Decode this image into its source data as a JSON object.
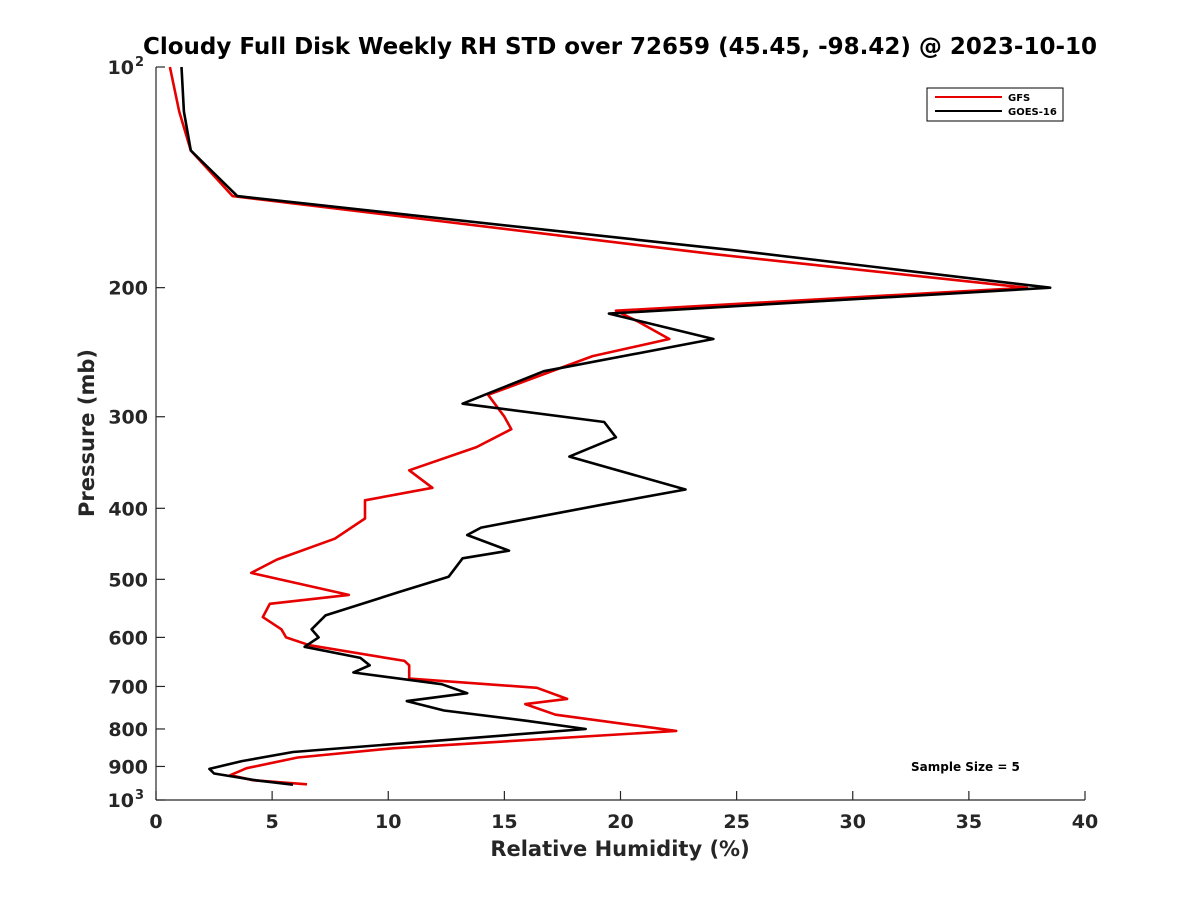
{
  "chart_data": {
    "type": "line",
    "title": "Cloudy Full Disk Weekly RH STD over 72659 (45.45, -98.42) @ 2023-10-10",
    "xlabel": "Relative Humidity (%)",
    "ylabel": "Pressure (mb)",
    "xlim": [
      0,
      40
    ],
    "ylim": [
      100,
      1000
    ],
    "y_scale": "log",
    "y_reversed": true,
    "grid": false,
    "legend_position": "top-right",
    "x_ticks": [
      0,
      5,
      10,
      15,
      20,
      25,
      30,
      35,
      40
    ],
    "y_ticks": [
      {
        "value": 100,
        "label": "10",
        "sup": "2"
      },
      {
        "value": 200,
        "label": "200"
      },
      {
        "value": 300,
        "label": "300"
      },
      {
        "value": 400,
        "label": "400"
      },
      {
        "value": 500,
        "label": "500"
      },
      {
        "value": 600,
        "label": "600"
      },
      {
        "value": 700,
        "label": "700"
      },
      {
        "value": 800,
        "label": "800"
      },
      {
        "value": 900,
        "label": "900"
      },
      {
        "value": 1000,
        "label": "10",
        "sup": "3"
      }
    ],
    "series": [
      {
        "name": "GFS",
        "color": "#e60000",
        "points": [
          [
            0.6,
            100
          ],
          [
            1.0,
            115
          ],
          [
            1.5,
            130
          ],
          [
            3.3,
            150
          ],
          [
            24.0,
            180
          ],
          [
            37.5,
            200
          ],
          [
            19.8,
            215
          ],
          [
            20.7,
            222
          ],
          [
            22.1,
            235
          ],
          [
            18.8,
            248
          ],
          [
            14.3,
            280
          ],
          [
            15.0,
            300
          ],
          [
            15.3,
            312
          ],
          [
            13.8,
            330
          ],
          [
            10.9,
            355
          ],
          [
            11.9,
            375
          ],
          [
            9.0,
            390
          ],
          [
            9.0,
            413
          ],
          [
            7.7,
            440
          ],
          [
            5.2,
            470
          ],
          [
            4.1,
            490
          ],
          [
            8.3,
            525
          ],
          [
            4.9,
            540
          ],
          [
            4.6,
            563
          ],
          [
            5.4,
            585
          ],
          [
            5.6,
            600
          ],
          [
            6.6,
            615
          ],
          [
            10.7,
            646
          ],
          [
            10.9,
            655
          ],
          [
            10.9,
            683
          ],
          [
            16.4,
            703
          ],
          [
            17.7,
            728
          ],
          [
            15.9,
            740
          ],
          [
            17.2,
            765
          ],
          [
            22.4,
            805
          ],
          [
            10.2,
            850
          ],
          [
            6.1,
            875
          ],
          [
            3.9,
            905
          ],
          [
            3.2,
            925
          ],
          [
            4.2,
            940
          ],
          [
            6.5,
            952
          ]
        ]
      },
      {
        "name": "GOES-16",
        "color": "#000000",
        "points": [
          [
            1.1,
            100
          ],
          [
            1.2,
            115
          ],
          [
            1.5,
            130
          ],
          [
            3.5,
            150
          ],
          [
            25.0,
            178
          ],
          [
            38.5,
            200
          ],
          [
            19.5,
            217
          ],
          [
            24.0,
            235
          ],
          [
            16.7,
            260
          ],
          [
            13.2,
            288
          ],
          [
            19.3,
            305
          ],
          [
            19.8,
            320
          ],
          [
            17.8,
            340
          ],
          [
            22.8,
            377
          ],
          [
            19.3,
            395
          ],
          [
            14.0,
            425
          ],
          [
            13.4,
            435
          ],
          [
            15.2,
            457
          ],
          [
            13.2,
            468
          ],
          [
            12.6,
            496
          ],
          [
            10.5,
            520
          ],
          [
            7.3,
            560
          ],
          [
            6.7,
            585
          ],
          [
            7.0,
            600
          ],
          [
            6.4,
            618
          ],
          [
            8.8,
            640
          ],
          [
            9.2,
            655
          ],
          [
            8.5,
            670
          ],
          [
            12.3,
            695
          ],
          [
            13.4,
            715
          ],
          [
            10.8,
            733
          ],
          [
            12.4,
            755
          ],
          [
            16.0,
            780
          ],
          [
            18.5,
            800
          ],
          [
            5.9,
            860
          ],
          [
            3.7,
            885
          ],
          [
            2.3,
            907
          ],
          [
            2.5,
            920
          ],
          [
            4.3,
            940
          ],
          [
            5.9,
            953
          ]
        ]
      }
    ],
    "annotation": "Sample Size = 5"
  }
}
